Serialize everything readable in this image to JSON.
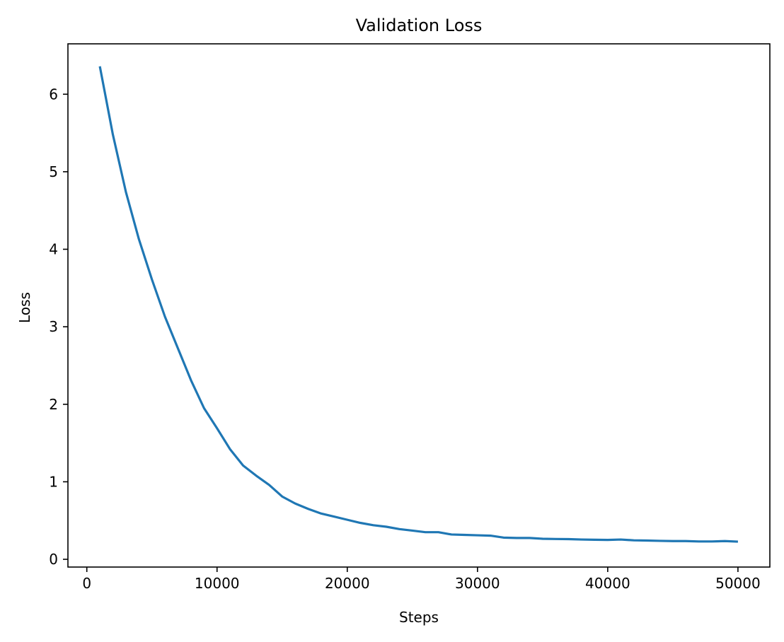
{
  "chart_data": {
    "type": "line",
    "title": "Validation Loss",
    "xlabel": "Steps",
    "ylabel": "Loss",
    "xlim": [
      -1450,
      52450
    ],
    "ylim": [
      -0.1,
      6.65
    ],
    "xticks": [
      0,
      10000,
      20000,
      30000,
      40000,
      50000
    ],
    "yticks": [
      0,
      1,
      2,
      3,
      4,
      5,
      6
    ],
    "grid": false,
    "legend": "none",
    "series": [
      {
        "color": "#1f77b4",
        "x": [
          1000,
          2000,
          3000,
          4000,
          5000,
          6000,
          7000,
          8000,
          9000,
          10000,
          11000,
          12000,
          13000,
          14000,
          15000,
          16000,
          17000,
          18000,
          19000,
          20000,
          21000,
          22000,
          23000,
          24000,
          25000,
          26000,
          27000,
          28000,
          29000,
          30000,
          31000,
          32000,
          33000,
          34000,
          35000,
          36000,
          37000,
          38000,
          39000,
          40000,
          41000,
          42000,
          43000,
          44000,
          45000,
          46000,
          47000,
          48000,
          49000,
          50000
        ],
        "y": [
          6.36,
          5.48,
          4.74,
          4.13,
          3.61,
          3.13,
          2.72,
          2.31,
          1.95,
          1.69,
          1.42,
          1.21,
          1.08,
          0.96,
          0.81,
          0.72,
          0.65,
          0.59,
          0.55,
          0.51,
          0.47,
          0.44,
          0.42,
          0.39,
          0.37,
          0.35,
          0.35,
          0.32,
          0.315,
          0.31,
          0.305,
          0.28,
          0.275,
          0.275,
          0.265,
          0.262,
          0.26,
          0.255,
          0.252,
          0.25,
          0.255,
          0.245,
          0.242,
          0.238,
          0.235,
          0.235,
          0.23,
          0.23,
          0.235,
          0.228
        ]
      }
    ]
  }
}
